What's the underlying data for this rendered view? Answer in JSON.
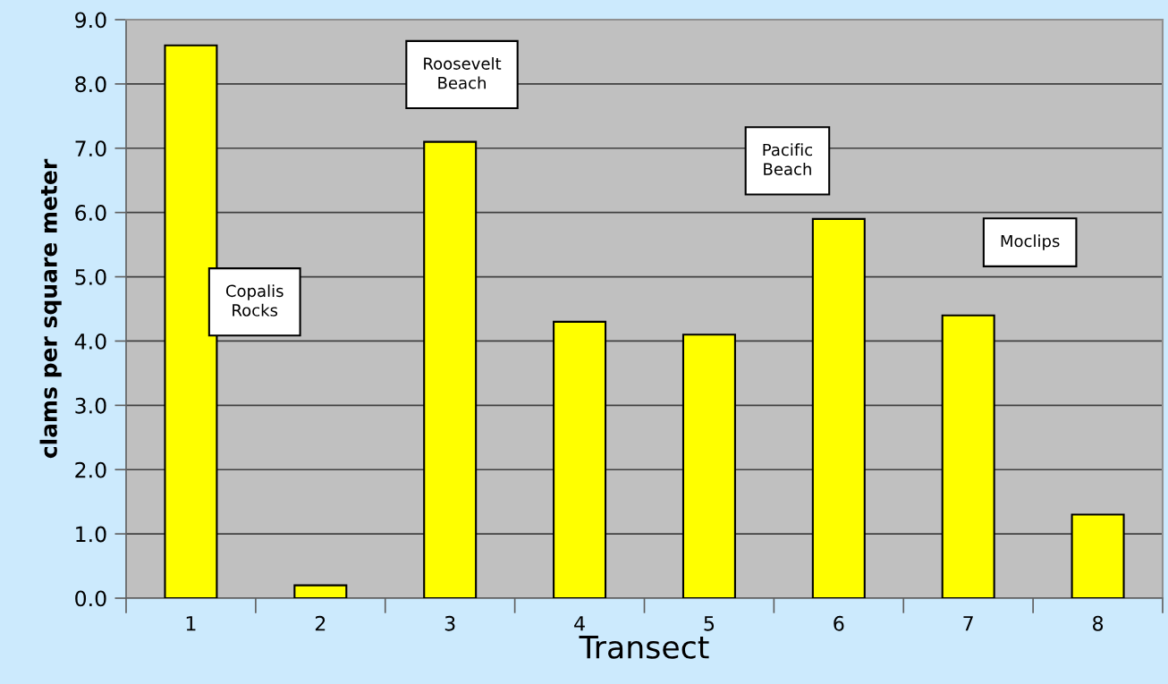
{
  "chart_data": {
    "type": "bar",
    "xlabel": "Transect",
    "ylabel": "clams per square meter",
    "categories": [
      "1",
      "2",
      "3",
      "4",
      "5",
      "6",
      "7",
      "8"
    ],
    "values": [
      8.6,
      0.2,
      7.1,
      4.3,
      4.1,
      5.9,
      4.4,
      1.3
    ],
    "color": "#ffff00",
    "ylim": [
      0,
      9
    ],
    "yticks": [
      {
        "value": 0,
        "label": "0.0"
      },
      {
        "value": 1,
        "label": "1.0"
      },
      {
        "value": 2,
        "label": "2.0"
      },
      {
        "value": 3,
        "label": "3.0"
      },
      {
        "value": 4,
        "label": "4.0"
      },
      {
        "value": 5,
        "label": "5.0"
      },
      {
        "value": 6,
        "label": "6.0"
      },
      {
        "value": 7,
        "label": "7.0"
      },
      {
        "value": 8,
        "label": "8.0"
      },
      {
        "value": 9,
        "label": "9.0"
      }
    ],
    "grid": "y",
    "legend": false,
    "annotations": [
      "Copalis\nRocks",
      "Roosevelt\nBeach",
      "Pacific\nBeach",
      "Moclips"
    ]
  }
}
